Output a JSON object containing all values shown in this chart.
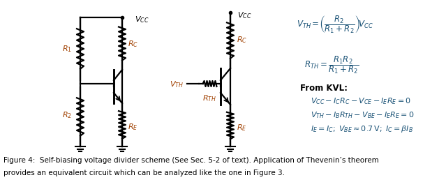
{
  "bg_color": "#ffffff",
  "text_color": "#000000",
  "eq_color": "#1a5276",
  "label_color": "#a04000",
  "figsize": [
    6.39,
    2.81
  ],
  "dpi": 100,
  "caption_line1": "Figure 4:  Self-biasing voltage divider scheme (See Sec. 5-2 of text). Application of Thevenin’s theorem",
  "caption_line2": "provides an equivalent circuit which can be analyzed like the one in Figure 3."
}
